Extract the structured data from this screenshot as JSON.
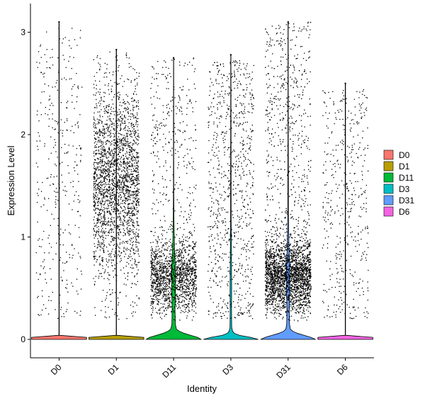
{
  "chart_data": {
    "type": "violin",
    "xlabel": "Identity",
    "ylabel": "Expression Level",
    "categories": [
      "D0",
      "D1",
      "D11",
      "D3",
      "D31",
      "D6"
    ],
    "ylim": [
      -0.18,
      3.28
    ],
    "yticks": [
      0,
      1,
      2,
      3
    ],
    "grid": false,
    "legend": {
      "position": "right",
      "entries": [
        {
          "label": "D0",
          "color": "#F8766D"
        },
        {
          "label": "D1",
          "color": "#B79F00"
        },
        {
          "label": "D11",
          "color": "#00BA38"
        },
        {
          "label": "D3",
          "color": "#00BFC4"
        },
        {
          "label": "D31",
          "color": "#619CFF"
        },
        {
          "label": "D6",
          "color": "#F564E3"
        }
      ]
    },
    "violins": [
      {
        "name": "D0",
        "color": "#F8766D",
        "max": 3.1,
        "n_points": 350,
        "profile": [
          [
            0,
            0.48
          ],
          [
            0.02,
            0.48
          ],
          [
            0.04,
            0.003
          ],
          [
            3.1,
            0.003
          ]
        ]
      },
      {
        "name": "D1",
        "color": "#B79F00",
        "max": 2.83,
        "n_points": 2400,
        "profile": [
          [
            0,
            0.48
          ],
          [
            0.02,
            0.48
          ],
          [
            0.04,
            0.003
          ],
          [
            2.83,
            0.003
          ]
        ]
      },
      {
        "name": "D11",
        "color": "#00BA38",
        "max": 2.75,
        "n_points": 1800,
        "profile": [
          [
            0,
            0.48
          ],
          [
            0.02,
            0.42
          ],
          [
            0.04,
            0.3
          ],
          [
            0.06,
            0.18
          ],
          [
            0.08,
            0.1
          ],
          [
            0.1,
            0.05
          ],
          [
            0.15,
            0.03
          ],
          [
            0.3,
            0.025
          ],
          [
            0.5,
            0.035
          ],
          [
            0.7,
            0.03
          ],
          [
            0.9,
            0.015
          ],
          [
            1.2,
            0.006
          ],
          [
            1.5,
            0.003
          ],
          [
            2.75,
            0.002
          ]
        ]
      },
      {
        "name": "D3",
        "color": "#00BFC4",
        "max": 2.78,
        "n_points": 850,
        "profile": [
          [
            0,
            0.48
          ],
          [
            0.02,
            0.35
          ],
          [
            0.04,
            0.15
          ],
          [
            0.06,
            0.06
          ],
          [
            0.08,
            0.03
          ],
          [
            0.12,
            0.015
          ],
          [
            0.3,
            0.012
          ],
          [
            0.5,
            0.014
          ],
          [
            0.8,
            0.01
          ],
          [
            1.2,
            0.005
          ],
          [
            2.78,
            0.002
          ]
        ]
      },
      {
        "name": "D31",
        "color": "#619CFF",
        "max": 3.1,
        "n_points": 3200,
        "profile": [
          [
            0,
            0.48
          ],
          [
            0.02,
            0.4
          ],
          [
            0.04,
            0.28
          ],
          [
            0.06,
            0.16
          ],
          [
            0.08,
            0.08
          ],
          [
            0.1,
            0.04
          ],
          [
            0.15,
            0.025
          ],
          [
            0.3,
            0.02
          ],
          [
            0.5,
            0.03
          ],
          [
            0.7,
            0.03
          ],
          [
            0.9,
            0.015
          ],
          [
            1.2,
            0.006
          ],
          [
            2.0,
            0.003
          ],
          [
            3.1,
            0.002
          ]
        ]
      },
      {
        "name": "D6",
        "color": "#F564E3",
        "max": 2.5,
        "n_points": 450,
        "profile": [
          [
            0,
            0.48
          ],
          [
            0.02,
            0.48
          ],
          [
            0.04,
            0.003
          ],
          [
            2.5,
            0.003
          ]
        ]
      }
    ]
  }
}
